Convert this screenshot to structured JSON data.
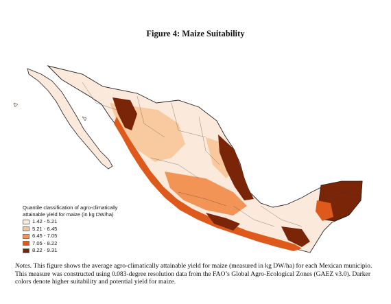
{
  "figure": {
    "title": "Figure 4: Maize Suitability"
  },
  "legend": {
    "title_line1": "Quantile classification of agro-climatically",
    "title_line2": "attainable yield for maize (in kg DW/ha)",
    "classes": [
      {
        "label": "1.42 - 5.21",
        "color": "#fbe9dc"
      },
      {
        "label": "5.21 - 6.45",
        "color": "#f8c495"
      },
      {
        "label": "6.45 - 7.05",
        "color": "#f39457"
      },
      {
        "label": "7.05 - 8.22",
        "color": "#dd5a1c"
      },
      {
        "label": "8.22 - 9.31",
        "color": "#7a2408"
      }
    ]
  },
  "notes": {
    "label": "Notes.",
    "text": " This figure shows the average agro-climatically attainable yield for maize (measured in kg DW/ha) for each Mexican municipio. This measure was constructed using 0.083-degree resolution data from the FAO’s Global Agro-Ecological Zones (GAEZ v3.0). Darker colors denote higher suitability and potential yield for maize."
  },
  "map": {
    "region": "Mexico",
    "unit": "municipio",
    "border_color": "#222222",
    "highlights": [
      "northwest sierra (dark)",
      "gulf coast (dark)",
      "yucatan peninsula (dark)",
      "pacific south (orange)"
    ]
  }
}
